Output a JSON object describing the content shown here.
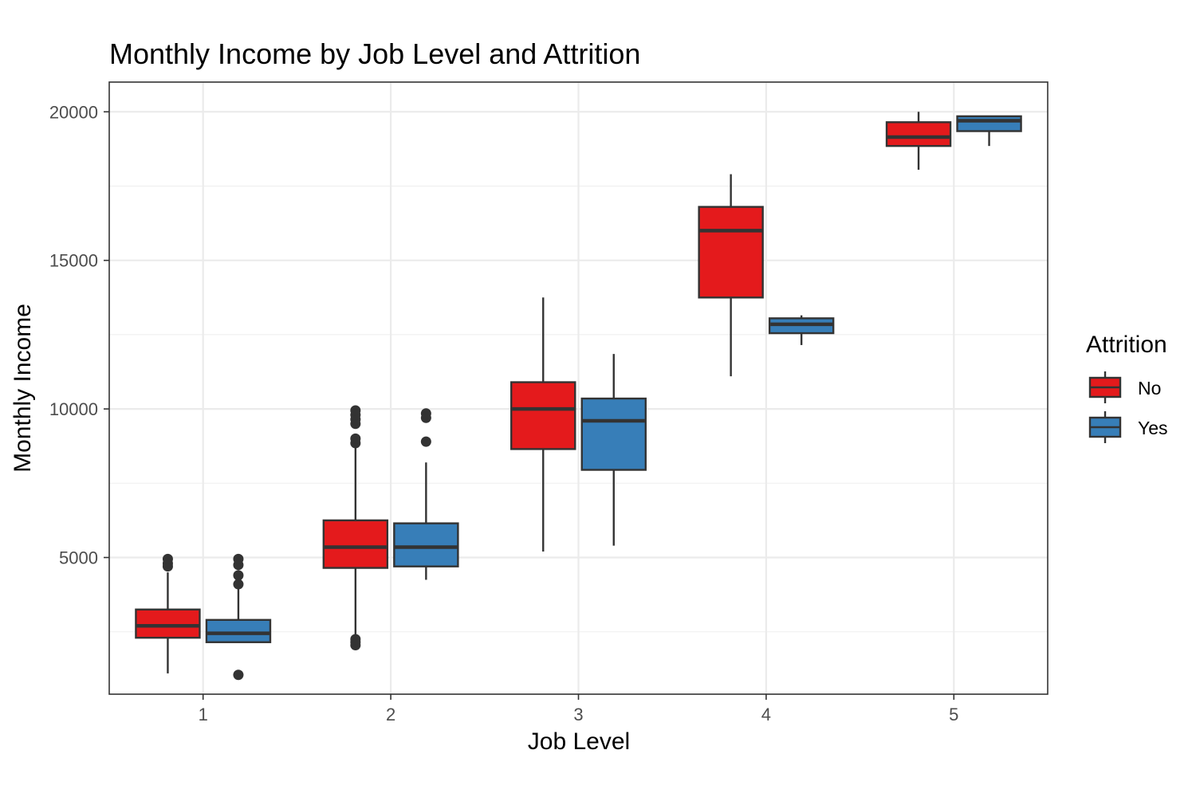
{
  "chart_data": {
    "type": "box",
    "title": "Monthly Income by Job Level and Attrition",
    "xlabel": "Job Level",
    "ylabel": "Monthly Income",
    "categories": [
      "1",
      "2",
      "3",
      "4",
      "5"
    ],
    "ylim": [
      400,
      21000
    ],
    "yticks": [
      5000,
      10000,
      15000,
      20000
    ],
    "grid": true,
    "legend": {
      "title": "Attrition",
      "position": "right"
    },
    "series": [
      {
        "name": "No",
        "color": "#e41a1c",
        "boxes": [
          {
            "category": "1",
            "whisker_low": 1100,
            "q1": 2300,
            "median": 2700,
            "q3": 3250,
            "whisker_high": 4500,
            "outliers": [
              4700,
              4800,
              4950
            ]
          },
          {
            "category": "2",
            "whisker_low": 2400,
            "q1": 4650,
            "median": 5350,
            "q3": 6250,
            "whisker_high": 8800,
            "outliers": [
              2050,
              2150,
              2250,
              8850,
              9000,
              9500,
              9650,
              9800,
              9950
            ]
          },
          {
            "category": "3",
            "whisker_low": 5200,
            "q1": 8650,
            "median": 10000,
            "q3": 10900,
            "whisker_high": 13750,
            "outliers": []
          },
          {
            "category": "4",
            "whisker_low": 11100,
            "q1": 13750,
            "median": 16000,
            "q3": 16800,
            "whisker_high": 17900,
            "outliers": []
          },
          {
            "category": "5",
            "whisker_low": 18050,
            "q1": 18850,
            "median": 19150,
            "q3": 19650,
            "whisker_high": 20000,
            "outliers": []
          }
        ]
      },
      {
        "name": "Yes",
        "color": "#377eb8",
        "boxes": [
          {
            "category": "1",
            "whisker_low": 2150,
            "q1": 2150,
            "median": 2450,
            "q3": 2900,
            "whisker_high": 4000,
            "outliers": [
              1050,
              4100,
              4400,
              4750,
              4950
            ]
          },
          {
            "category": "2",
            "whisker_low": 4250,
            "q1": 4700,
            "median": 5350,
            "q3": 6150,
            "whisker_high": 8200,
            "outliers": [
              8900,
              9700,
              9850
            ]
          },
          {
            "category": "3",
            "whisker_low": 5400,
            "q1": 7950,
            "median": 9600,
            "q3": 10350,
            "whisker_high": 11850,
            "outliers": []
          },
          {
            "category": "4",
            "whisker_low": 12150,
            "q1": 12550,
            "median": 12850,
            "q3": 13050,
            "whisker_high": 13150,
            "outliers": []
          },
          {
            "category": "5",
            "whisker_low": 18850,
            "q1": 19350,
            "median": 19700,
            "q3": 19850,
            "whisker_high": 19850,
            "outliers": []
          }
        ]
      }
    ]
  }
}
